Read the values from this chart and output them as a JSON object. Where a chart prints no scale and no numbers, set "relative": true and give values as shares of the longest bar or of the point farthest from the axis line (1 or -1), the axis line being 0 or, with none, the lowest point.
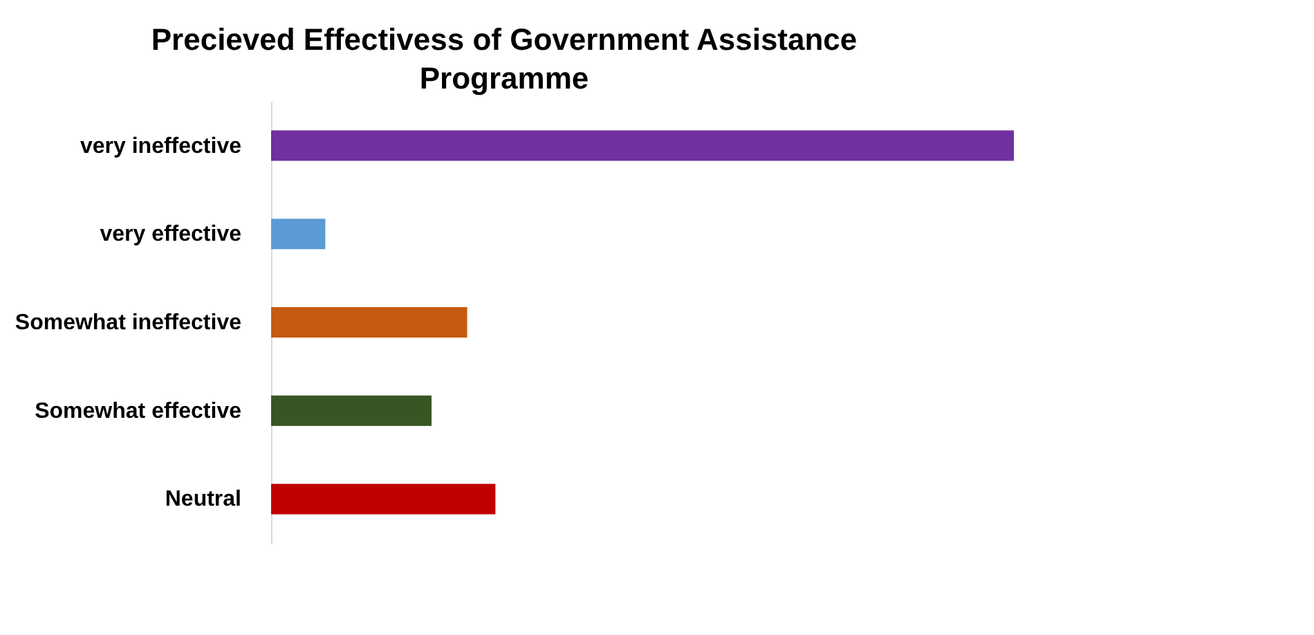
{
  "chart_data": {
    "type": "bar",
    "orientation": "horizontal",
    "relative": true,
    "title": "Precieved Effectivess of Government Assistance Programme",
    "categories": [
      "very ineffective",
      "very effective",
      "Somewhat ineffective",
      "Somewhat effective",
      "Neutral"
    ],
    "values": [
      1,
      0.073,
      0.264,
      0.216,
      0.302
    ],
    "colors": [
      "#7030a0",
      "#5b9bd5",
      "#c55a11",
      "#375623",
      "#c00000"
    ],
    "grid": false
  }
}
